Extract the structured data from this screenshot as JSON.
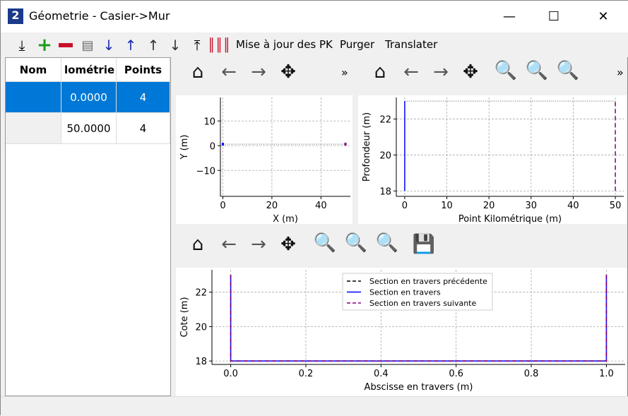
{
  "window": {
    "title": "Géometrie - Casier->Mur",
    "app_icon": "app-icon",
    "minimize": "—",
    "maximize": "☐",
    "close": "✕"
  },
  "toolbar": {
    "icons": [
      "import-icon",
      "add-icon",
      "remove-icon",
      "document-icon",
      "sort-ascending-icon",
      "sort-descending-icon",
      "move-up-icon",
      "move-down-icon",
      "export-icon",
      "barcode-icon"
    ],
    "buttons": [
      "Mise à jour des PK",
      "Purger",
      "Translater"
    ],
    "add_color": "#1a9c1a",
    "remove_color": "#c8102e"
  },
  "table": {
    "headers": [
      "Nom",
      "lométrie",
      "Points"
    ],
    "rows": [
      [
        "",
        "0.0000",
        "4"
      ],
      [
        "",
        "50.0000",
        "4"
      ]
    ],
    "selected_row": 0
  },
  "plot_toolbar": {
    "icons": [
      "home-icon",
      "back-icon",
      "forward-icon",
      "pan-icon",
      "zoom-icon",
      "zoom-1-icon",
      "zoom-fit-icon",
      "save-icon"
    ],
    "more": "»"
  },
  "chart_data": [
    {
      "type": "line",
      "xlabel": "X (m)",
      "ylabel": "Y (m)",
      "xlim": [
        -1,
        52
      ],
      "ylim": [
        -20.5,
        19.5
      ],
      "xticks": [
        "0",
        "20",
        "40"
      ],
      "xtick_values": [
        0,
        20,
        40
      ],
      "yticks": [
        "10",
        "0",
        "−10"
      ],
      "ytick_values": [
        10,
        0,
        -10
      ],
      "grid": true,
      "series": [
        {
          "x": [
            0,
            50
          ],
          "y": [
            0.6,
            0.6
          ],
          "style": "dotted",
          "color": "#888888"
        },
        {
          "x": [
            0
          ],
          "y": [
            0.6
          ],
          "style": "marker",
          "color": "#0000ff"
        },
        {
          "x": [
            50
          ],
          "y": [
            0.6
          ],
          "style": "marker",
          "color": "#800080"
        }
      ]
    },
    {
      "type": "line",
      "xlabel": "Point Kilométrique (m)",
      "ylabel": "Profondeur (m)",
      "xlim": [
        -2,
        52
      ],
      "ylim": [
        17.7,
        23.2
      ],
      "xticks": [
        "0",
        "10",
        "20",
        "30",
        "40",
        "50"
      ],
      "xtick_values": [
        0,
        10,
        20,
        30,
        40,
        50
      ],
      "yticks": [
        "18",
        "20",
        "22"
      ],
      "ytick_values": [
        18,
        20,
        22
      ],
      "grid": true,
      "series": [
        {
          "x": [
            0,
            50
          ],
          "y": [
            23,
            23
          ],
          "style": "dotted",
          "color": "#888888"
        },
        {
          "x": [
            0,
            0
          ],
          "y": [
            18,
            23
          ],
          "style": "solid",
          "color": "#0000ff"
        },
        {
          "x": [
            50,
            50
          ],
          "y": [
            18,
            23
          ],
          "style": "dashed",
          "color": "#800080"
        }
      ]
    },
    {
      "type": "line",
      "xlabel": "Abscisse en travers (m)",
      "ylabel": "Cote (m)",
      "xlim": [
        -0.05,
        1.05
      ],
      "ylim": [
        17.8,
        23.3
      ],
      "xticks": [
        "0.0",
        "0.2",
        "0.4",
        "0.6",
        "0.8",
        "1.0"
      ],
      "xtick_values": [
        0,
        0.2,
        0.4,
        0.6,
        0.8,
        1.0
      ],
      "yticks": [
        "18",
        "20",
        "22"
      ],
      "ytick_values": [
        18,
        20,
        22
      ],
      "grid": true,
      "legend": "top-center",
      "series": [
        {
          "name": "Section en travers précédente",
          "x": [
            0,
            0,
            1,
            1
          ],
          "y": [
            23,
            18,
            18,
            23
          ],
          "style": "dashed",
          "color": "#000000"
        },
        {
          "name": "Section en travers",
          "x": [
            0,
            0,
            1,
            1
          ],
          "y": [
            23,
            18,
            18,
            23
          ],
          "style": "solid",
          "color": "#0000ff"
        },
        {
          "name": "Section en travers suivante",
          "x": [
            0,
            0,
            1,
            1
          ],
          "y": [
            23,
            18,
            18,
            23
          ],
          "style": "dashed",
          "color": "#800080"
        }
      ]
    }
  ]
}
